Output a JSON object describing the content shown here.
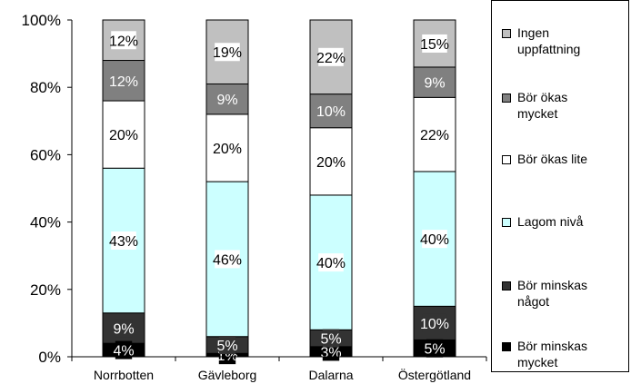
{
  "chart_data": {
    "type": "bar",
    "stacked": true,
    "percent": true,
    "categories": [
      "Norrbotten",
      "Gävleborg",
      "Dalarna",
      "Östergötland"
    ],
    "ylim": [
      0,
      100
    ],
    "yticks": [
      "0%",
      "20%",
      "40%",
      "60%",
      "80%",
      "100%"
    ],
    "series": [
      {
        "name": "Bör minskas mycket",
        "values": [
          4,
          1,
          3,
          5
        ],
        "labels": [
          "4%",
          "1%",
          "3%",
          "5%"
        ],
        "color": "#000000",
        "text_color": "#ffffff"
      },
      {
        "name": "Bör minskas något",
        "values": [
          9,
          5,
          5,
          10
        ],
        "labels": [
          "9%",
          "5%",
          "5%",
          "10%"
        ],
        "color": "#333333",
        "text_color": "#ffffff"
      },
      {
        "name": "Lagom nivå",
        "values": [
          43,
          46,
          40,
          40
        ],
        "labels": [
          "43%",
          "46%",
          "40%",
          "40%"
        ],
        "color": "#ccffff",
        "text_color": "#000000"
      },
      {
        "name": "Bör ökas lite",
        "values": [
          20,
          20,
          20,
          22
        ],
        "labels": [
          "20%",
          "20%",
          "20%",
          "22%"
        ],
        "color": "#ffffff",
        "text_color": "#000000"
      },
      {
        "name": "Bör ökas mycket",
        "values": [
          12,
          9,
          10,
          9
        ],
        "labels": [
          "12%",
          "9%",
          "10%",
          "9%"
        ],
        "color": "#808080",
        "text_color": "#ffffff"
      },
      {
        "name": "Ingen uppfattning",
        "values": [
          12,
          19,
          22,
          15
        ],
        "labels": [
          "12%",
          "19%",
          "22%",
          "15%"
        ],
        "color": "#c0c0c0",
        "text_color": "#000000"
      }
    ],
    "legend_position": "right",
    "grid": false
  },
  "legend": [
    {
      "text": "Ingen\nuppfattning",
      "color": "#c0c0c0"
    },
    {
      "text": "Bör ökas\nmycket",
      "color": "#808080"
    },
    {
      "text": "Bör ökas lite",
      "color": "#ffffff"
    },
    {
      "text": "Lagom nivå",
      "color": "#ccffff"
    },
    {
      "text": "Bör minskas\nnågot",
      "color": "#333333"
    },
    {
      "text": "Bör minskas\nmycket",
      "color": "#000000"
    }
  ]
}
